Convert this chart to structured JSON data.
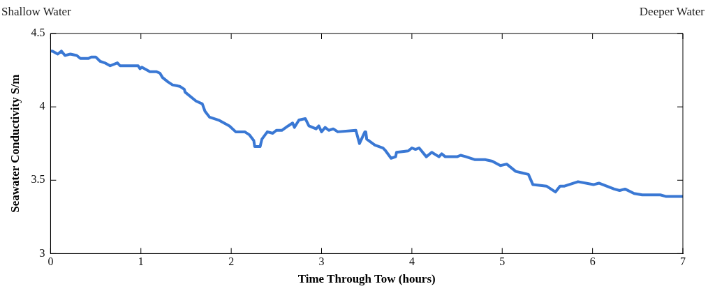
{
  "chart_data": {
    "type": "line",
    "xlabel": "Time Through Tow (hours)",
    "ylabel": "Seawater Conductivity S/m",
    "annotations": [
      "Shallow Water",
      "Deeper Water"
    ],
    "xlim": [
      0,
      7
    ],
    "xticks": [
      0,
      1,
      2,
      3,
      4,
      5,
      6,
      7
    ],
    "ylim": [
      3,
      4.5
    ],
    "yticks": [
      3,
      3.5,
      4,
      4.5
    ],
    "grid": false,
    "legend": false,
    "marker": "none",
    "line_style": "solid",
    "series": [
      {
        "color": "#3a78d4",
        "x": [
          0,
          0.02,
          0.08,
          0.12,
          0.16,
          0.22,
          0.29,
          0.33,
          0.42,
          0.45,
          0.5,
          0.55,
          0.6,
          0.66,
          0.74,
          0.77,
          0.97,
          0.99,
          1.01,
          1.1,
          1.17,
          1.21,
          1.24,
          1.3,
          1.35,
          1.43,
          1.48,
          1.49,
          1.61,
          1.68,
          1.71,
          1.76,
          1.86,
          1.92,
          1.98,
          2.05,
          2.15,
          2.2,
          2.25,
          2.26,
          2.32,
          2.34,
          2.4,
          2.46,
          2.5,
          2.56,
          2.63,
          2.68,
          2.7,
          2.75,
          2.82,
          2.86,
          2.94,
          2.97,
          3,
          3.04,
          3.08,
          3.13,
          3.18,
          3.38,
          3.42,
          3.48,
          3.49,
          3.5,
          3.59,
          3.68,
          3.71,
          3.77,
          3.82,
          3.83,
          3.96,
          4,
          4.04,
          4.08,
          4.16,
          4.22,
          4.3,
          4.33,
          4.37,
          4.5,
          4.54,
          4.6,
          4.7,
          4.81,
          4.89,
          4.98,
          5.05,
          5.15,
          5.22,
          5.29,
          5.34,
          5.49,
          5.59,
          5.64,
          5.69,
          5.84,
          6.01,
          6.07,
          6.24,
          6.3,
          6.36,
          6.46,
          6.55,
          6.75,
          6.81,
          6.92,
          7
        ],
        "values": [
          4.38,
          4.38,
          4.36,
          4.38,
          4.35,
          4.36,
          4.35,
          4.33,
          4.33,
          4.34,
          4.34,
          4.31,
          4.3,
          4.28,
          4.3,
          4.28,
          4.28,
          4.26,
          4.27,
          4.24,
          4.24,
          4.23,
          4.2,
          4.17,
          4.15,
          4.14,
          4.12,
          4.1,
          4.04,
          4.02,
          3.97,
          3.93,
          3.91,
          3.89,
          3.87,
          3.83,
          3.83,
          3.81,
          3.77,
          3.73,
          3.73,
          3.78,
          3.83,
          3.82,
          3.84,
          3.84,
          3.87,
          3.89,
          3.86,
          3.91,
          3.92,
          3.87,
          3.85,
          3.87,
          3.83,
          3.86,
          3.84,
          3.85,
          3.83,
          3.84,
          3.75,
          3.83,
          3.83,
          3.78,
          3.74,
          3.72,
          3.7,
          3.65,
          3.66,
          3.69,
          3.7,
          3.72,
          3.71,
          3.72,
          3.66,
          3.69,
          3.66,
          3.68,
          3.66,
          3.66,
          3.67,
          3.66,
          3.64,
          3.64,
          3.63,
          3.6,
          3.61,
          3.56,
          3.55,
          3.54,
          3.47,
          3.46,
          3.42,
          3.46,
          3.46,
          3.49,
          3.47,
          3.48,
          3.44,
          3.43,
          3.44,
          3.41,
          3.4,
          3.4,
          3.39,
          3.39,
          3.39
        ]
      }
    ]
  }
}
